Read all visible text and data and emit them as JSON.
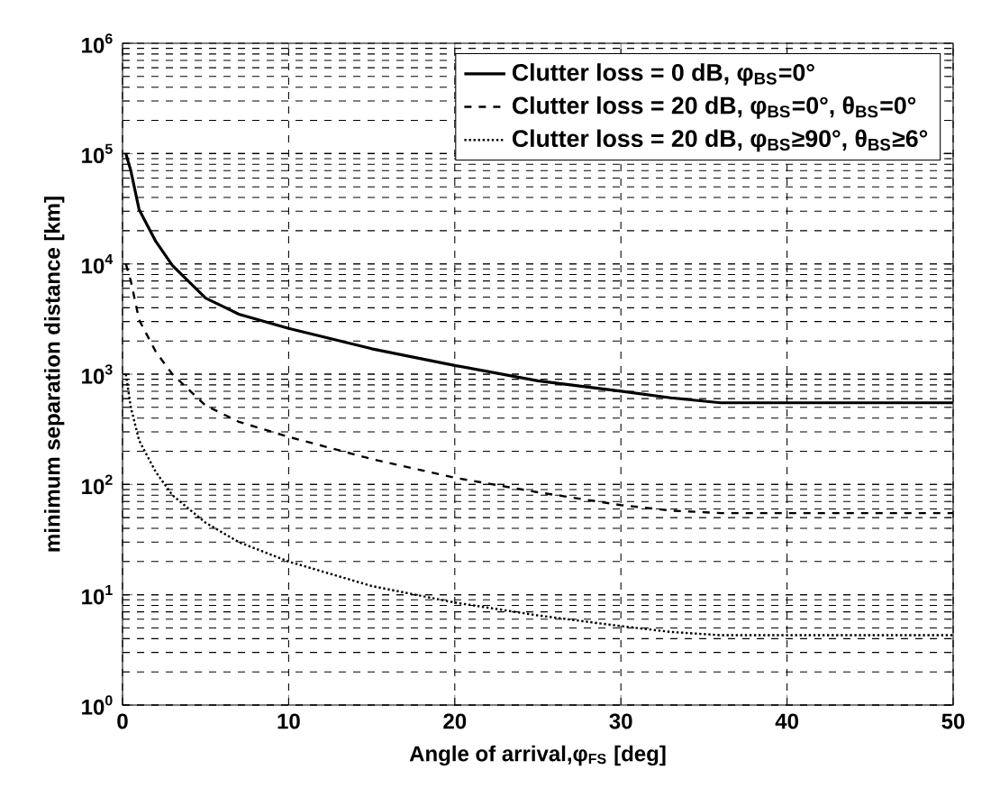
{
  "chart_data": {
    "type": "line",
    "xlabel": "Angle of arrival,φ$_{FS}$ [deg]",
    "ylabel": "minimum separation distance [km]",
    "xlim": [
      0,
      50
    ],
    "xticks": [
      0,
      10,
      20,
      30,
      40,
      50
    ],
    "ylim": [
      1,
      1000000
    ],
    "yticks": [
      {
        "value": 1,
        "label": "10$^{0}$"
      },
      {
        "value": 10,
        "label": "10$^{1}$"
      },
      {
        "value": 100,
        "label": "10$^{2}$"
      },
      {
        "value": 1000,
        "label": "10$^{3}$"
      },
      {
        "value": 10000,
        "label": "10$^{4}$"
      },
      {
        "value": 100000,
        "label": "10$^{5}$"
      },
      {
        "value": 1000000,
        "label": "10$^{6}$"
      }
    ],
    "log": "y",
    "grid": true,
    "legend": "top right",
    "marker": "none",
    "series": [
      {
        "name": "Clutter loss = 0 dB, φ$_{BS}$=0°",
        "color": "#000000",
        "line_style": "solid",
        "x": [
          0.2,
          0.5,
          1,
          2,
          3,
          5,
          7,
          10,
          15,
          20,
          25,
          30,
          33,
          36,
          40,
          45,
          50
        ],
        "values": [
          100000,
          70000,
          31000,
          16000,
          9700,
          4900,
          3500,
          2600,
          1700,
          1200,
          870,
          700,
          610,
          550,
          550,
          550,
          550
        ]
      },
      {
        "name": "Clutter loss = 20 dB, φ$_{BS}$=0°, θ$_{BS}$=0°",
        "color": "#000000",
        "line_style": "dashed",
        "x": [
          0.2,
          0.5,
          1,
          2,
          3,
          5,
          7,
          10,
          15,
          20,
          25,
          30,
          33,
          36,
          40,
          45,
          50
        ],
        "values": [
          10000,
          7000,
          3100,
          1600,
          1000,
          520,
          370,
          270,
          170,
          115,
          85,
          65,
          58,
          55,
          55,
          55,
          55
        ]
      },
      {
        "name": "Clutter loss = 20 dB, φ$_{BS}$≥90°, θ$_{BS}$≥6°",
        "color": "#000000",
        "line_style": "dotted",
        "x": [
          0.2,
          0.5,
          1,
          2,
          3,
          5,
          7,
          10,
          15,
          20,
          25,
          30,
          33,
          36,
          40,
          45,
          50
        ],
        "values": [
          1000,
          500,
          250,
          130,
          80,
          45,
          30,
          20,
          12,
          8.5,
          6.5,
          5.2,
          4.6,
          4.3,
          4.3,
          4.3,
          4.3
        ]
      }
    ]
  }
}
